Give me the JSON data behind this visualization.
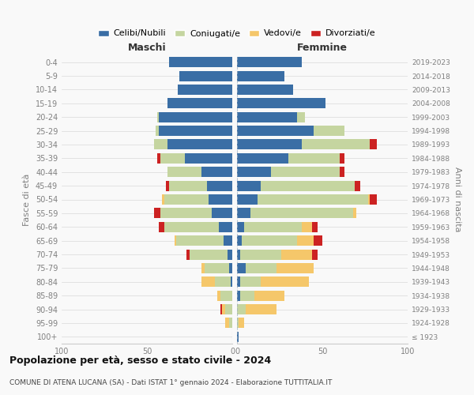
{
  "age_groups": [
    "100+",
    "95-99",
    "90-94",
    "85-89",
    "80-84",
    "75-79",
    "70-74",
    "65-69",
    "60-64",
    "55-59",
    "50-54",
    "45-49",
    "40-44",
    "35-39",
    "30-34",
    "25-29",
    "20-24",
    "15-19",
    "10-14",
    "5-9",
    "0-4"
  ],
  "birth_years": [
    "≤ 1923",
    "1924-1928",
    "1929-1933",
    "1934-1938",
    "1939-1943",
    "1944-1948",
    "1949-1953",
    "1954-1958",
    "1959-1963",
    "1964-1968",
    "1969-1973",
    "1974-1978",
    "1979-1983",
    "1984-1988",
    "1989-1993",
    "1994-1998",
    "1999-2003",
    "2004-2008",
    "2009-2013",
    "2014-2018",
    "2019-2023"
  ],
  "colors": {
    "celibi": "#3a6ea5",
    "coniugati": "#c5d5a0",
    "vedovi": "#f5c76a",
    "divorziati": "#cc2222"
  },
  "maschi": {
    "celibi": [
      0,
      0,
      0,
      0,
      1,
      2,
      3,
      5,
      8,
      12,
      14,
      15,
      18,
      28,
      38,
      43,
      43,
      38,
      32,
      31,
      37
    ],
    "coniugati": [
      0,
      2,
      4,
      7,
      9,
      14,
      22,
      28,
      32,
      30,
      26,
      22,
      20,
      14,
      8,
      2,
      1,
      0,
      0,
      0,
      0
    ],
    "vedovi": [
      0,
      2,
      2,
      2,
      8,
      2,
      0,
      1,
      0,
      0,
      1,
      0,
      0,
      0,
      0,
      0,
      0,
      0,
      0,
      0,
      0
    ],
    "divorziati": [
      0,
      0,
      1,
      0,
      0,
      0,
      2,
      0,
      3,
      4,
      0,
      2,
      0,
      2,
      0,
      0,
      0,
      0,
      0,
      0,
      0
    ]
  },
  "femmine": {
    "celibi": [
      1,
      0,
      0,
      2,
      2,
      5,
      2,
      3,
      4,
      8,
      12,
      14,
      20,
      30,
      38,
      45,
      35,
      52,
      33,
      28,
      38
    ],
    "coniugati": [
      0,
      1,
      5,
      8,
      12,
      18,
      24,
      32,
      34,
      60,
      65,
      55,
      40,
      30,
      40,
      18,
      5,
      0,
      0,
      0,
      0
    ],
    "vedovi": [
      0,
      3,
      18,
      18,
      28,
      22,
      18,
      10,
      6,
      2,
      1,
      0,
      0,
      0,
      0,
      0,
      0,
      0,
      0,
      0,
      0
    ],
    "divorziati": [
      0,
      0,
      0,
      0,
      0,
      0,
      3,
      5,
      3,
      0,
      4,
      3,
      3,
      3,
      4,
      0,
      0,
      0,
      0,
      0,
      0
    ]
  },
  "xlim": 100,
  "title": "Popolazione per età, sesso e stato civile - 2024",
  "subtitle": "COMUNE DI ATENA LUCANA (SA) - Dati ISTAT 1° gennaio 2024 - Elaborazione TUTTITALIA.IT",
  "ylabel_left": "Fasce di età",
  "ylabel_right": "Anni di nascita",
  "bg_color": "#f9f9f9",
  "grid_color": "#cccccc"
}
